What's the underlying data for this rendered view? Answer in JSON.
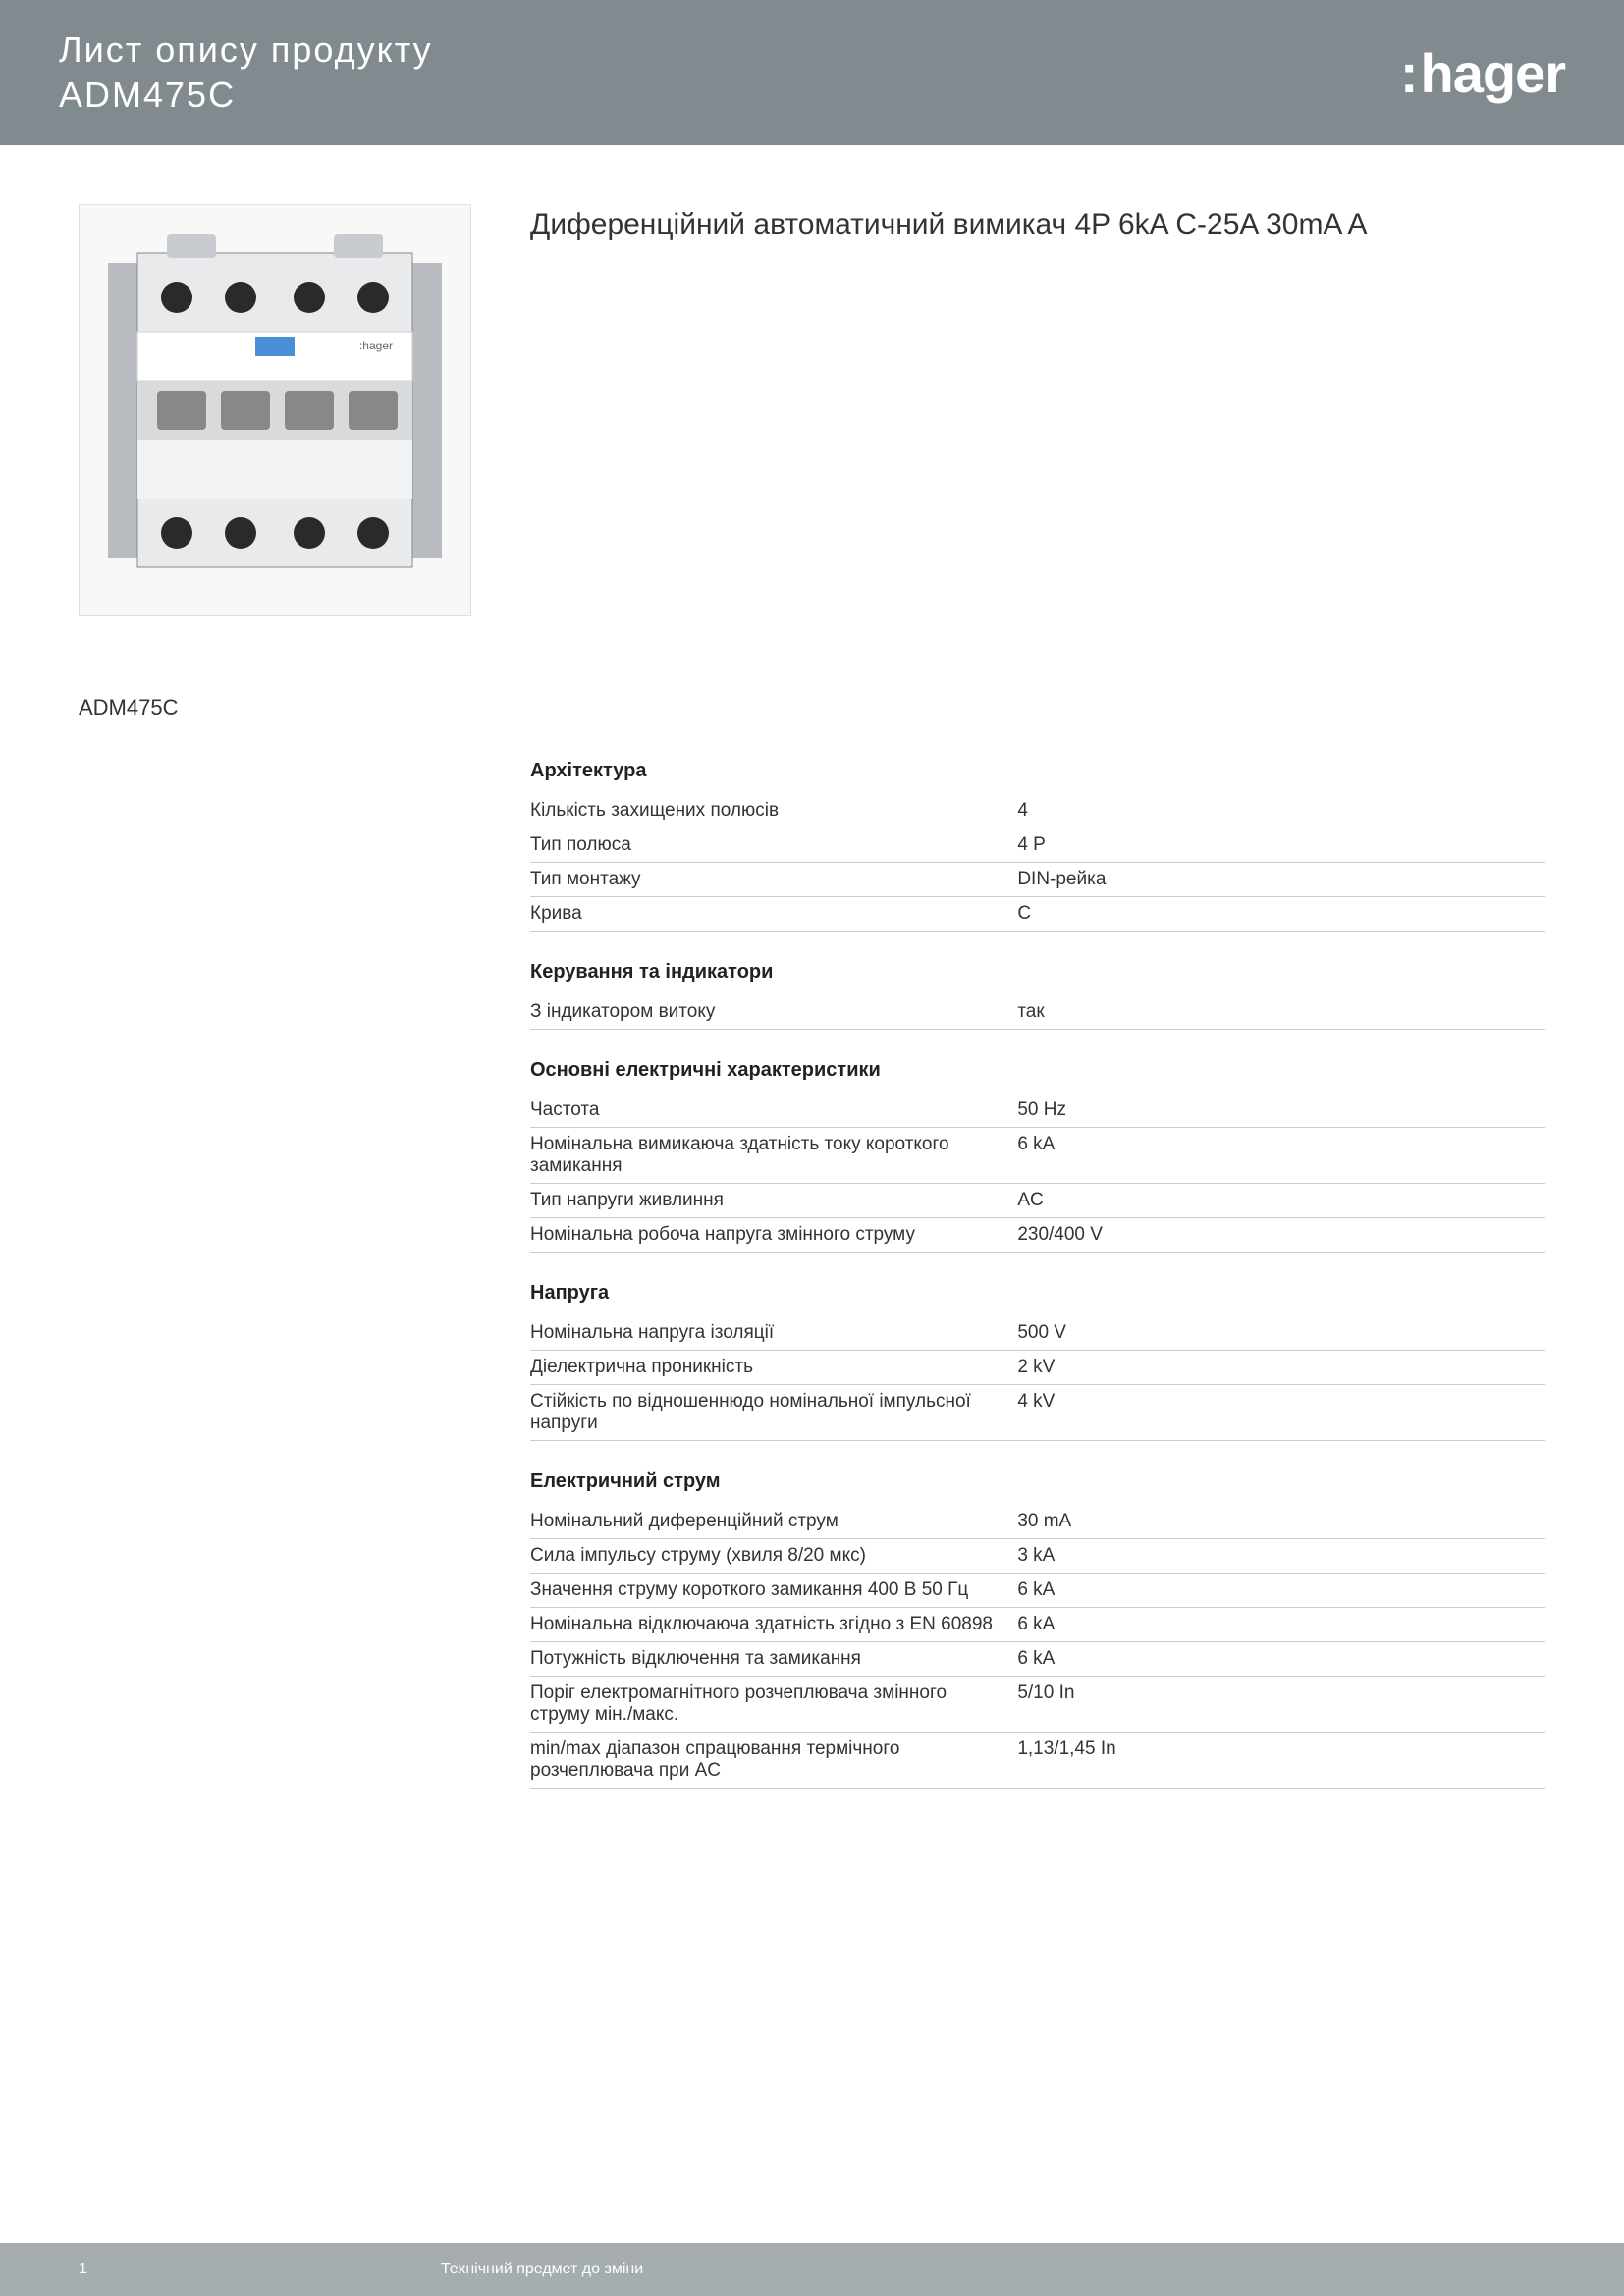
{
  "header": {
    "title": "Лист опису продукту",
    "code": "ADM475C",
    "logo_text": "hager"
  },
  "product": {
    "title": "Диференційний автоматичний вимикач 4P 6kA C-25A 30mA A",
    "code_label": "ADM475C"
  },
  "colors": {
    "header_bg": "#818a8f",
    "footer_bg": "#a6adb1",
    "text": "#333333",
    "border": "#cccccc"
  },
  "sections": [
    {
      "title": "Архітектура",
      "rows": [
        {
          "label": "Кількість захищених полюсів",
          "value": "4"
        },
        {
          "label": "Тип полюса",
          "value": "4 P"
        },
        {
          "label": "Тип монтажу",
          "value": "DIN-рейка"
        },
        {
          "label": "Крива",
          "value": "C"
        }
      ]
    },
    {
      "title": "Керування та індикатори",
      "rows": [
        {
          "label": "З індикатором витоку",
          "value": "так"
        }
      ]
    },
    {
      "title": "Основні електричні характеристики",
      "rows": [
        {
          "label": "Частота",
          "value": "50 Hz"
        },
        {
          "label": "Номінальна вимикаюча здатність току короткого замикання",
          "value": "6 kA"
        },
        {
          "label": "Тип напруги живлиння",
          "value": "AC"
        },
        {
          "label": "Номінальна робоча напруга змінного струму",
          "value": "230/400 V"
        }
      ]
    },
    {
      "title": "Напруга",
      "rows": [
        {
          "label": "Номінальна напруга ізоляції",
          "value": "500 V"
        },
        {
          "label": "Діелектрична проникність",
          "value": "2 kV"
        },
        {
          "label": "Стійкість по відношеннюдо номінальної імпульсної напруги",
          "value": "4 kV"
        }
      ]
    },
    {
      "title": "Електричний струм",
      "rows": [
        {
          "label": "Номінальний диференційний струм",
          "value": "30 mA"
        },
        {
          "label": "Сила імпульсу струму (хвиля 8/20 мкс)",
          "value": "3 kA"
        },
        {
          "label": "Значення струму короткого замикання 400 В 50 Гц",
          "value": "6 kA"
        },
        {
          "label": "Номінальна відключаюча здатність згідно з EN 60898",
          "value": "6 kA"
        },
        {
          "label": "Потужність відключення та замикання",
          "value": "6 kA"
        },
        {
          "label": "Поріг електромагнітного розчеплювача змінного струму мін./макс.",
          "value": "5/10 In"
        },
        {
          "label": "min/max діапазон спрацювання термічного розчеплювача при AC",
          "value": "1,13/1,45 In"
        }
      ]
    }
  ],
  "footer": {
    "page": "1",
    "note": "Технічний предмет до зміни"
  }
}
